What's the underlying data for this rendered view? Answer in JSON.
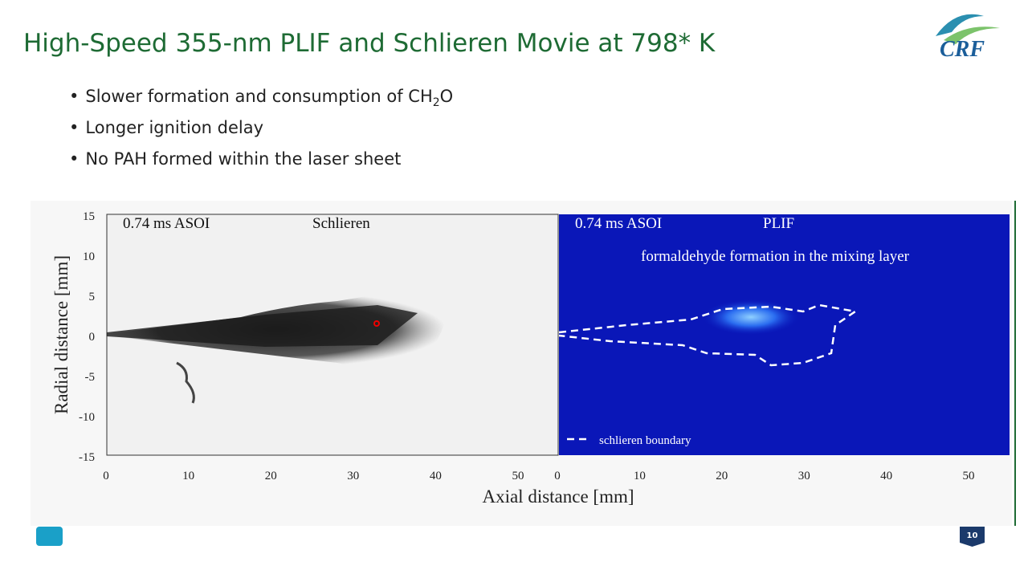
{
  "slide": {
    "title": "High-Speed 355-nm PLIF and Schlieren Movie at 798* K",
    "bullets": [
      {
        "parts": [
          "Slower formation and consumption of CH",
          "2",
          "O"
        ]
      },
      {
        "parts": [
          "Longer ignition delay"
        ]
      },
      {
        "parts": [
          "No PAH formed within the laser sheet"
        ]
      }
    ],
    "logo": "CRF",
    "page_number": "10",
    "figure": {
      "y_label": "Radial distance [mm]",
      "x_label": "Axial distance [mm]",
      "y_ticks": [
        "15",
        "10",
        "5",
        "0",
        "-5",
        "-10",
        "-15"
      ],
      "left_x_ticks": [
        "0",
        "10",
        "20",
        "30",
        "40",
        "50"
      ],
      "right_x_ticks": [
        "0",
        "10",
        "20",
        "30",
        "40",
        "50"
      ],
      "left_panel": {
        "time": "0.74 ms ASOI",
        "label": "Schlieren"
      },
      "right_panel": {
        "time": "0.74 ms ASOI",
        "label": "PLIF",
        "note": "formaldehyde formation in the mixing layer",
        "legend": "schlieren boundary"
      }
    }
  }
}
